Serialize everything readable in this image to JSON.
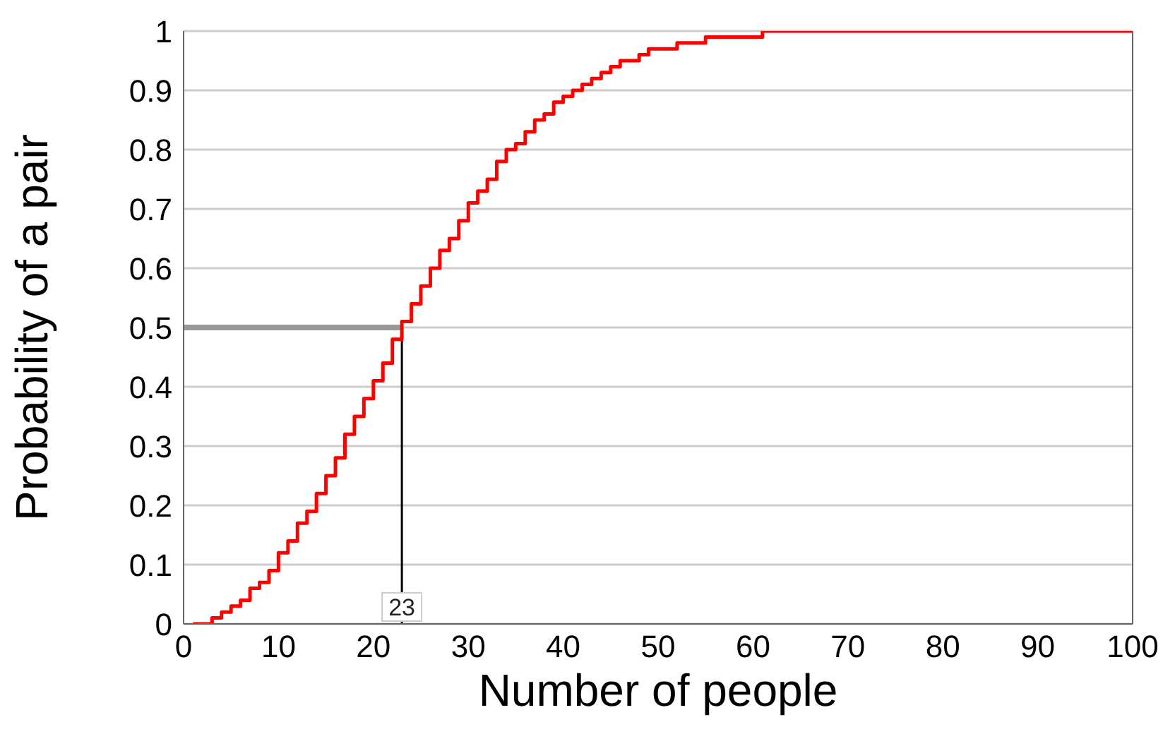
{
  "chart_data": {
    "type": "step",
    "xlabel": "Number of people",
    "ylabel": "Probability of a pair",
    "x": [
      1,
      2,
      3,
      4,
      5,
      6,
      7,
      8,
      9,
      10,
      11,
      12,
      13,
      14,
      15,
      16,
      17,
      18,
      19,
      20,
      21,
      22,
      23,
      24,
      25,
      26,
      27,
      28,
      29,
      30,
      31,
      32,
      33,
      34,
      35,
      36,
      37,
      38,
      39,
      40,
      41,
      42,
      43,
      44,
      45,
      46,
      47,
      48,
      49,
      50,
      51,
      52,
      53,
      54,
      55,
      56,
      57,
      58,
      59,
      60,
      61,
      62,
      63,
      64,
      65,
      66,
      67,
      68,
      69,
      70,
      71,
      72,
      73,
      74,
      75,
      76,
      77,
      78,
      79,
      80,
      81,
      82,
      83,
      84,
      85,
      86,
      87,
      88,
      89,
      90,
      91,
      92,
      93,
      94,
      95,
      96,
      97,
      98,
      99,
      100
    ],
    "series": [
      {
        "color": "#ff0000",
        "values": [
          0,
          0,
          0.01,
          0.02,
          0.03,
          0.04,
          0.06,
          0.07,
          0.09,
          0.12,
          0.14,
          0.17,
          0.19,
          0.22,
          0.25,
          0.28,
          0.32,
          0.35,
          0.38,
          0.41,
          0.44,
          0.48,
          0.51,
          0.54,
          0.57,
          0.6,
          0.63,
          0.65,
          0.68,
          0.71,
          0.73,
          0.75,
          0.78,
          0.8,
          0.81,
          0.83,
          0.85,
          0.86,
          0.88,
          0.89,
          0.9,
          0.91,
          0.92,
          0.93,
          0.94,
          0.95,
          0.95,
          0.96,
          0.97,
          0.97,
          0.97,
          0.98,
          0.98,
          0.98,
          0.99,
          0.99,
          0.99,
          0.99,
          0.99,
          0.99,
          1,
          1,
          1,
          1,
          1,
          1,
          1,
          1,
          1,
          1,
          1,
          1,
          1,
          1,
          1,
          1,
          1,
          1,
          1,
          1,
          1,
          1,
          1,
          1,
          1,
          1,
          1,
          1,
          1,
          1,
          1,
          1,
          1,
          1,
          1,
          1,
          1,
          1,
          1,
          1
        ]
      }
    ],
    "xlim": [
      0,
      100
    ],
    "xticks": [
      0,
      10,
      20,
      30,
      40,
      50,
      60,
      70,
      80,
      90,
      100
    ],
    "ylim": [
      0,
      1
    ],
    "yticks": [
      0,
      0.1,
      0.2,
      0.3,
      0.4,
      0.5,
      0.6,
      0.7,
      0.8,
      0.9,
      1
    ],
    "grid": "y",
    "legend": false,
    "marker": "none",
    "line_style": "solid",
    "ref_lines": [
      {
        "axis": "y",
        "value": 0.5,
        "color": "#999999"
      },
      {
        "axis": "x",
        "value": 23,
        "label": "23",
        "color": "#000000"
      }
    ]
  }
}
